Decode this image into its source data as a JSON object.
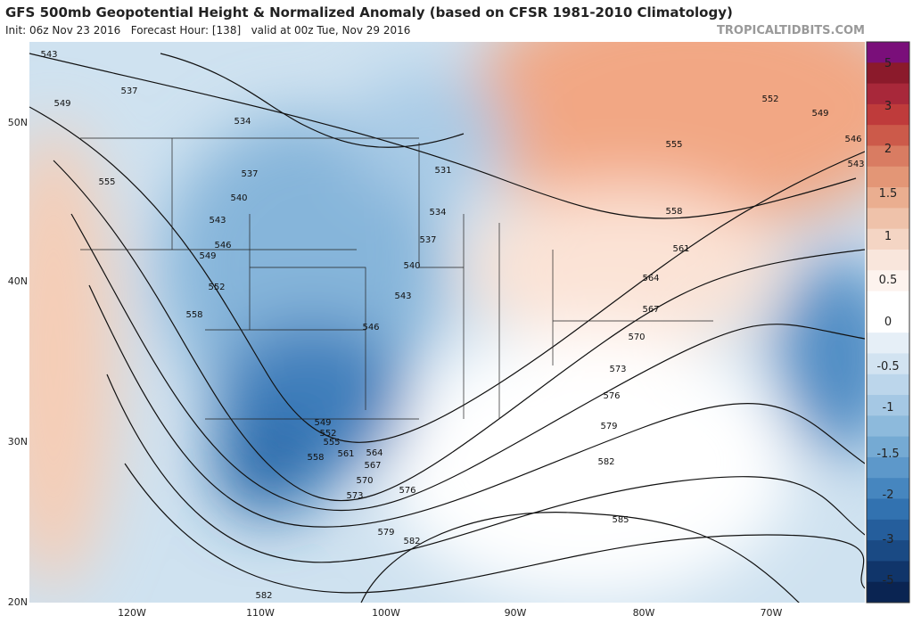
{
  "header": {
    "title": "GFS 500mb Geopotential Height & Normalized Anomaly (based on CFSR 1981-2010 Climatology)",
    "subtitle": "Init: 06z Nov 23 2016   Forecast Hour: [138]   valid at 00z Tue, Nov 29 2016",
    "credit": "TROPICALTIDBITS.COM"
  },
  "colorbar": {
    "labels": [
      "5",
      "3",
      "2",
      "1.5",
      "1",
      "0.5",
      "0",
      "-0.5",
      "-1",
      "-1.5",
      "-2",
      "-3",
      "-5"
    ]
  },
  "axes": {
    "latitudes": [
      "50N",
      "40N",
      "30N",
      "20N"
    ],
    "longitudes": [
      "120W",
      "110W",
      "100W",
      "90W",
      "80W",
      "70W"
    ]
  },
  "contour_labels": [
    "543",
    "537",
    "549",
    "534",
    "555",
    "537",
    "531",
    "540",
    "534",
    "543",
    "546",
    "537",
    "549",
    "540",
    "552",
    "543",
    "558",
    "546",
    "549",
    "552",
    "555",
    "558",
    "561",
    "564",
    "567",
    "570",
    "573",
    "576",
    "579",
    "582",
    "582",
    "585",
    "582",
    "579",
    "576",
    "573",
    "570",
    "567",
    "564",
    "561",
    "558",
    "555",
    "552",
    "549",
    "546",
    "543"
  ]
}
